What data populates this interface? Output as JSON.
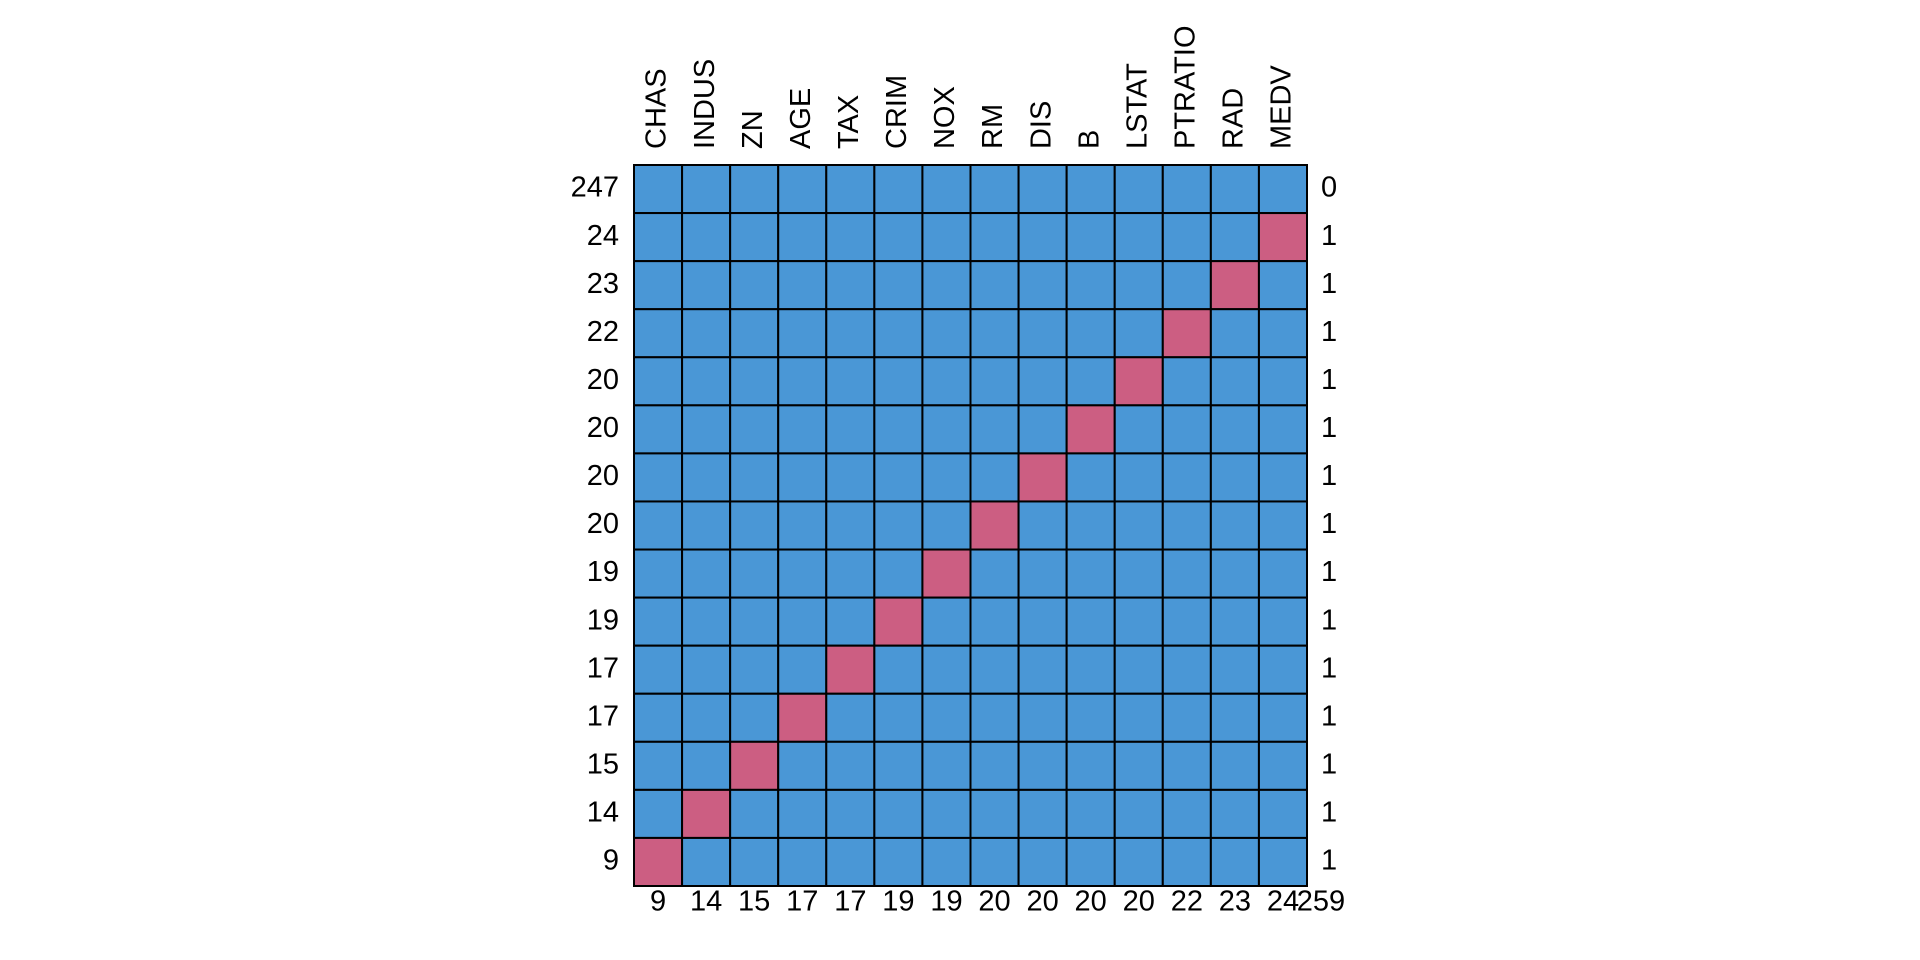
{
  "chart_data": {
    "type": "heatmap",
    "columns": [
      "CHAS",
      "INDUS",
      "ZN",
      "AGE",
      "TAX",
      "CRIM",
      "NOX",
      "RM",
      "DIS",
      "B",
      "LSTAT",
      "PTRATIO",
      "RAD",
      "MEDV"
    ],
    "row_counts": [
      247,
      24,
      23,
      22,
      20,
      20,
      20,
      20,
      19,
      19,
      17,
      17,
      15,
      14,
      9
    ],
    "row_missing": [
      0,
      1,
      1,
      1,
      1,
      1,
      1,
      1,
      1,
      1,
      1,
      1,
      1,
      1,
      1
    ],
    "col_missing": [
      9,
      14,
      15,
      17,
      17,
      19,
      19,
      20,
      20,
      20,
      20,
      22,
      23,
      24
    ],
    "total_missing": 259,
    "matrix": [
      [
        1,
        1,
        1,
        1,
        1,
        1,
        1,
        1,
        1,
        1,
        1,
        1,
        1,
        1
      ],
      [
        1,
        1,
        1,
        1,
        1,
        1,
        1,
        1,
        1,
        1,
        1,
        1,
        1,
        0
      ],
      [
        1,
        1,
        1,
        1,
        1,
        1,
        1,
        1,
        1,
        1,
        1,
        1,
        0,
        1
      ],
      [
        1,
        1,
        1,
        1,
        1,
        1,
        1,
        1,
        1,
        1,
        1,
        0,
        1,
        1
      ],
      [
        1,
        1,
        1,
        1,
        1,
        1,
        1,
        1,
        1,
        1,
        0,
        1,
        1,
        1
      ],
      [
        1,
        1,
        1,
        1,
        1,
        1,
        1,
        1,
        1,
        0,
        1,
        1,
        1,
        1
      ],
      [
        1,
        1,
        1,
        1,
        1,
        1,
        1,
        1,
        0,
        1,
        1,
        1,
        1,
        1
      ],
      [
        1,
        1,
        1,
        1,
        1,
        1,
        1,
        0,
        1,
        1,
        1,
        1,
        1,
        1
      ],
      [
        1,
        1,
        1,
        1,
        1,
        1,
        0,
        1,
        1,
        1,
        1,
        1,
        1,
        1
      ],
      [
        1,
        1,
        1,
        1,
        1,
        0,
        1,
        1,
        1,
        1,
        1,
        1,
        1,
        1
      ],
      [
        1,
        1,
        1,
        1,
        0,
        1,
        1,
        1,
        1,
        1,
        1,
        1,
        1,
        1
      ],
      [
        1,
        1,
        1,
        0,
        1,
        1,
        1,
        1,
        1,
        1,
        1,
        1,
        1,
        1
      ],
      [
        1,
        1,
        0,
        1,
        1,
        1,
        1,
        1,
        1,
        1,
        1,
        1,
        1,
        1
      ],
      [
        1,
        0,
        1,
        1,
        1,
        1,
        1,
        1,
        1,
        1,
        1,
        1,
        1,
        1
      ],
      [
        0,
        1,
        1,
        1,
        1,
        1,
        1,
        1,
        1,
        1,
        1,
        1,
        1,
        1
      ]
    ],
    "colors": {
      "observed": "#4a97d6",
      "missing": "#cc5e82"
    }
  }
}
